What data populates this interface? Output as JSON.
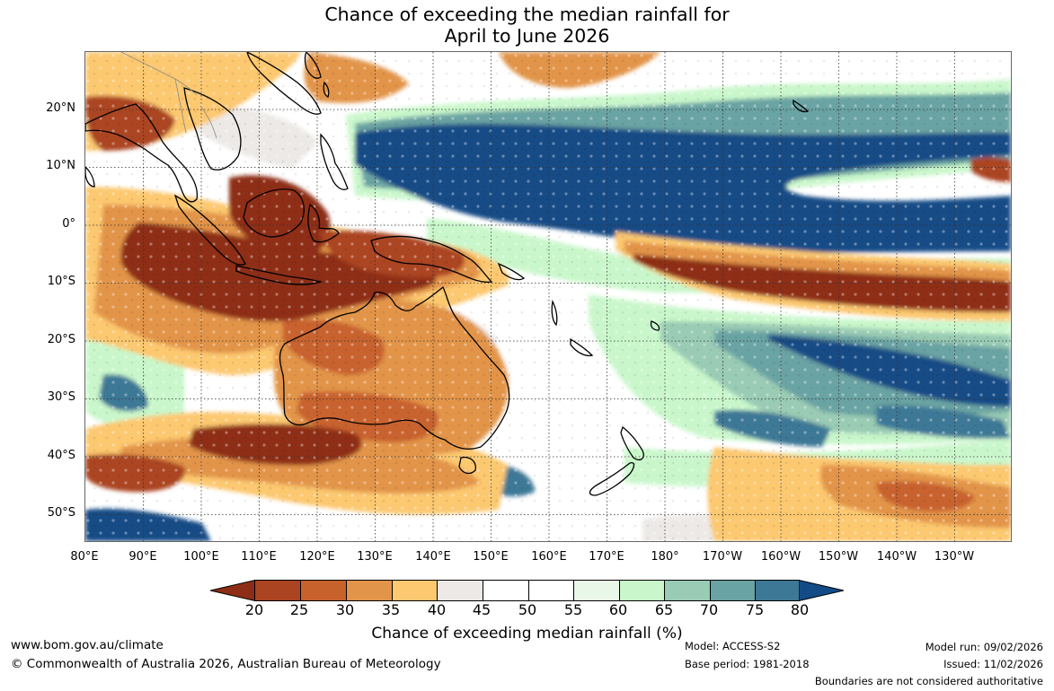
{
  "title": {
    "line1": "Chance of exceeding the median rainfall for",
    "line2": "April to June 2026"
  },
  "map": {
    "lat_labels": [
      "20°N",
      "10°N",
      "0°",
      "10°S",
      "20°S",
      "30°S",
      "40°S",
      "50°S"
    ],
    "lon_labels": [
      "80°E",
      "90°E",
      "100°E",
      "110°E",
      "120°E",
      "130°E",
      "140°E",
      "150°E",
      "160°E",
      "170°E",
      "180°",
      "170°W",
      "160°W",
      "150°W",
      "140°W",
      "130°W"
    ],
    "coastline_color": "#000000",
    "gridline_style": "dotted"
  },
  "colorbar": {
    "ticks": [
      "20",
      "25",
      "30",
      "35",
      "40",
      "45",
      "50",
      "55",
      "60",
      "65",
      "70",
      "75",
      "80"
    ],
    "colors": [
      "#8e2d15",
      "#ab4420",
      "#c8622d",
      "#e2944a",
      "#fcc870",
      "#ece9e6",
      "#ffffff",
      "#ffffff",
      "#e8f7e8",
      "#c9f7cb",
      "#9acbb4",
      "#6aa3a3",
      "#3d7896",
      "#134b86"
    ],
    "label": "Chance of exceeding median rainfall (%)"
  },
  "footer": {
    "website": "www.bom.gov.au/climate",
    "copyright": "© Commonwealth of Australia 2026, Australian Bureau of Meteorology",
    "model": "Model: ACCESS-S2",
    "base_period": "Base period: 1981-2018",
    "model_run": "Model run: 09/02/2026",
    "issued": "Issued: 11/02/2026",
    "disclaimer": "Boundaries are not considered authoritative"
  }
}
